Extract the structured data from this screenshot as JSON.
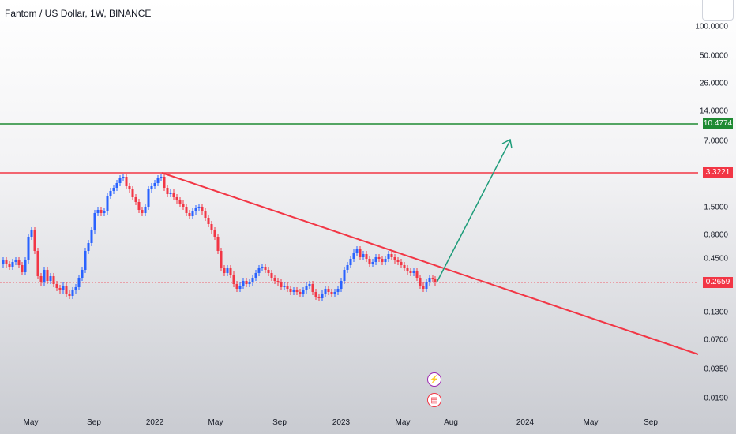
{
  "header": {
    "title": "Fantom / US Dollar, 1W, BINANCE"
  },
  "y_axis": {
    "labels": [
      "100.0000",
      "50.0000",
      "26.0000",
      "14.0000",
      "7.0000",
      "1.5000",
      "0.8000",
      "0.4500",
      "0.1300",
      "0.0700",
      "0.0350",
      "0.0190"
    ]
  },
  "x_axis": {
    "labels": [
      "May",
      "Sep",
      "2022",
      "May",
      "Sep",
      "2023",
      "May",
      "Aug",
      "2024",
      "May",
      "Sep"
    ]
  },
  "price_badges": [
    {
      "value": "10.4774",
      "color": "#1e8a32"
    },
    {
      "value": "3.3221",
      "color": "#f23645"
    },
    {
      "value": "0.2659",
      "color": "#f23645"
    }
  ],
  "colors": {
    "bullish": "#2962ff",
    "bearish": "#f23645",
    "support": "#1e8a32",
    "resistance": "#f23645",
    "projection": "#1e9c7a"
  },
  "events": [
    {
      "icon": "lightning-icon",
      "color": "#9c27b0"
    },
    {
      "icon": "us-flag-icon",
      "color": "#f23645"
    }
  ]
}
